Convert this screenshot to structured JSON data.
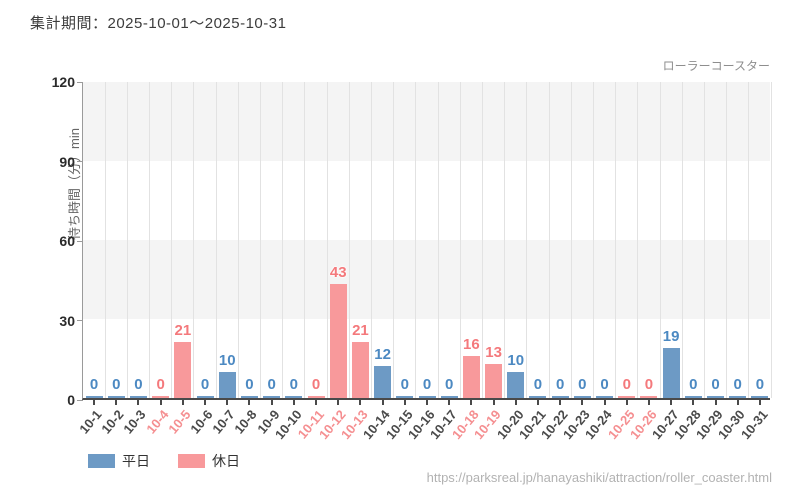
{
  "header": {
    "period_label": "集計期間：2025-10-01～2025-10-31"
  },
  "chart_data": {
    "type": "bar",
    "title": "ローラーコースター",
    "ylabel": "待ち時間（分）min",
    "ylim": [
      0,
      120
    ],
    "yticks": [
      0,
      30,
      60,
      90,
      120
    ],
    "grid": "vertical-light, horizontal-bands",
    "legend_position": "bottom-left",
    "categories": [
      "10-1",
      "10-2",
      "10-3",
      "10-4",
      "10-5",
      "10-6",
      "10-7",
      "10-8",
      "10-9",
      "10-10",
      "10-11",
      "10-12",
      "10-13",
      "10-14",
      "10-15",
      "10-16",
      "10-17",
      "10-18",
      "10-19",
      "10-20",
      "10-21",
      "10-22",
      "10-23",
      "10-24",
      "10-25",
      "10-26",
      "10-27",
      "10-28",
      "10-29",
      "10-30",
      "10-31"
    ],
    "values": [
      0,
      0,
      0,
      0,
      21,
      0,
      10,
      0,
      0,
      0,
      0,
      43,
      21,
      12,
      0,
      0,
      0,
      16,
      13,
      10,
      0,
      0,
      0,
      0,
      0,
      0,
      19,
      0,
      0,
      0,
      0
    ],
    "day_types": [
      "weekday",
      "weekday",
      "weekday",
      "holiday",
      "holiday",
      "weekday",
      "weekday",
      "weekday",
      "weekday",
      "weekday",
      "holiday",
      "holiday",
      "holiday",
      "weekday",
      "weekday",
      "weekday",
      "weekday",
      "holiday",
      "holiday",
      "weekday",
      "weekday",
      "weekday",
      "weekday",
      "weekday",
      "holiday",
      "holiday",
      "weekday",
      "weekday",
      "weekday",
      "weekday",
      "weekday"
    ],
    "colors": {
      "weekday_bar": "#6d9ac5",
      "holiday_bar": "#f8999b",
      "weekday_value_label": "#4c89c2",
      "holiday_value_label": "#f4797c",
      "weekday_axis_label": "#4a4a4a",
      "holiday_axis_label": "#f58f91"
    },
    "legend": [
      {
        "label": "平日",
        "type": "weekday"
      },
      {
        "label": "休日",
        "type": "holiday"
      }
    ]
  },
  "footer": {
    "url": "https://parksreal.jp/hanayashiki/attraction/roller_coaster.html"
  }
}
